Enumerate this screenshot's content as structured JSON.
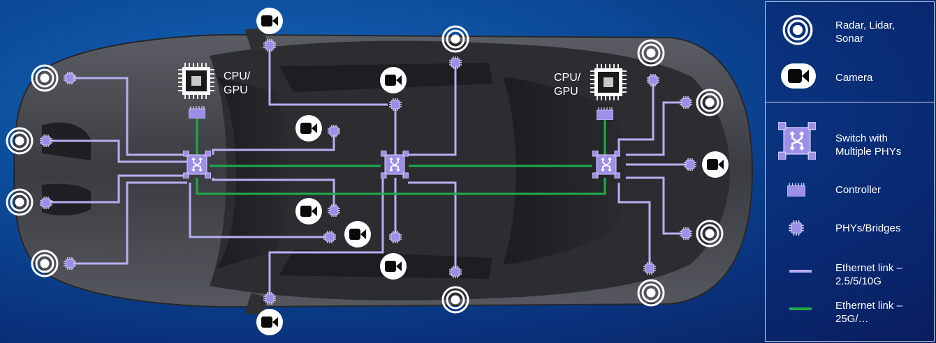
{
  "cpu_labels": {
    "left": "CPU/\nGPU",
    "right": "CPU/\nGPU"
  },
  "legend": {
    "radar": "Radar, Lidar,\nSonar",
    "camera": "Camera",
    "switch": "Switch with\nMultiple PHYs",
    "controller": "Controller",
    "phy": "PHYs/Bridges",
    "ethernet_slow": "Ethernet link –\n2.5/5/10G",
    "ethernet_fast": "Ethernet link –\n25G/…"
  },
  "colors": {
    "link_slow": "#b9aef0",
    "link_fast": "#1faa4a",
    "component": "#9d8ee8",
    "car_body": "#3d3f44"
  },
  "icons": {
    "radar": "radar-icon",
    "camera": "camera-icon",
    "switch": "switch-icon",
    "controller": "controller-icon",
    "phy": "phy-icon",
    "cpu": "cpu-gpu-icon"
  }
}
